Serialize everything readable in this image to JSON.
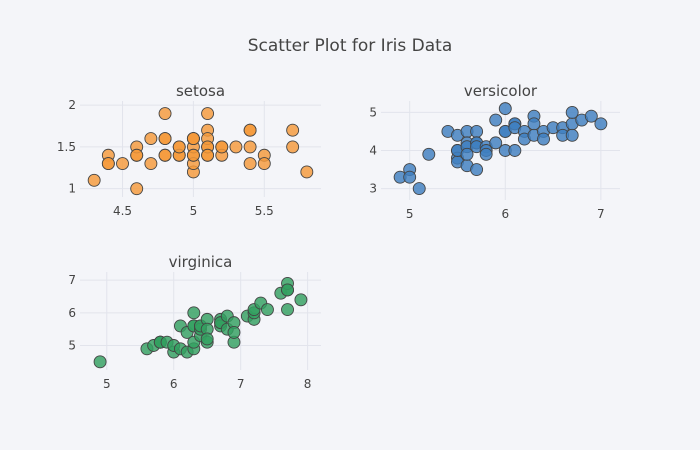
{
  "chart_data": {
    "type": "scatter",
    "title": "Scatter Plot for Iris Data",
    "subplots": [
      {
        "name": "setosa",
        "color": "#f59a3a",
        "xlim": [
          4.2,
          5.9
        ],
        "ylim": [
          0.9,
          2.05
        ],
        "xticks": [
          4.5,
          5,
          5.5
        ],
        "xtick_labels": [
          "4.5",
          "5",
          "5.5"
        ],
        "yticks": [
          1,
          1.5,
          2
        ],
        "ytick_labels": [
          "1",
          "1.5",
          "2"
        ],
        "points": [
          [
            4.3,
            1.1
          ],
          [
            4.4,
            1.4
          ],
          [
            4.4,
            1.3
          ],
          [
            4.4,
            1.3
          ],
          [
            4.5,
            1.3
          ],
          [
            4.6,
            1.0
          ],
          [
            4.6,
            1.4
          ],
          [
            4.6,
            1.5
          ],
          [
            4.6,
            1.4
          ],
          [
            4.7,
            1.3
          ],
          [
            4.7,
            1.6
          ],
          [
            4.8,
            1.9
          ],
          [
            4.8,
            1.6
          ],
          [
            4.8,
            1.4
          ],
          [
            4.8,
            1.6
          ],
          [
            4.8,
            1.4
          ],
          [
            4.9,
            1.4
          ],
          [
            4.9,
            1.5
          ],
          [
            4.9,
            1.4
          ],
          [
            4.9,
            1.5
          ],
          [
            5.0,
            1.4
          ],
          [
            5.0,
            1.5
          ],
          [
            5.0,
            1.6
          ],
          [
            5.0,
            1.2
          ],
          [
            5.0,
            1.3
          ],
          [
            5.0,
            1.4
          ],
          [
            5.0,
            1.6
          ],
          [
            5.0,
            1.6
          ],
          [
            5.1,
            1.4
          ],
          [
            5.1,
            1.5
          ],
          [
            5.1,
            1.7
          ],
          [
            5.1,
            1.9
          ],
          [
            5.1,
            1.6
          ],
          [
            5.1,
            1.5
          ],
          [
            5.1,
            1.4
          ],
          [
            5.2,
            1.5
          ],
          [
            5.2,
            1.4
          ],
          [
            5.2,
            1.5
          ],
          [
            5.3,
            1.5
          ],
          [
            5.4,
            1.7
          ],
          [
            5.4,
            1.5
          ],
          [
            5.4,
            1.7
          ],
          [
            5.4,
            1.3
          ],
          [
            5.5,
            1.4
          ],
          [
            5.5,
            1.3
          ],
          [
            5.7,
            1.5
          ],
          [
            5.7,
            1.7
          ],
          [
            5.8,
            1.2
          ]
        ]
      },
      {
        "name": "versicolor",
        "color": "#3f7fbf",
        "xlim": [
          4.7,
          7.2
        ],
        "ylim": [
          2.7,
          5.3
        ],
        "xticks": [
          5,
          6,
          7
        ],
        "xtick_labels": [
          "5",
          "6",
          "7"
        ],
        "yticks": [
          3,
          4,
          5
        ],
        "ytick_labels": [
          "3",
          "4",
          "5"
        ],
        "points": [
          [
            4.9,
            3.3
          ],
          [
            5.0,
            3.5
          ],
          [
            5.0,
            3.3
          ],
          [
            5.1,
            3.0
          ],
          [
            5.2,
            3.9
          ],
          [
            5.4,
            4.5
          ],
          [
            5.5,
            4.4
          ],
          [
            5.5,
            4.0
          ],
          [
            5.5,
            3.8
          ],
          [
            5.5,
            3.7
          ],
          [
            5.5,
            4.0
          ],
          [
            5.6,
            4.5
          ],
          [
            5.6,
            3.6
          ],
          [
            5.6,
            4.2
          ],
          [
            5.6,
            4.1
          ],
          [
            5.6,
            3.9
          ],
          [
            5.7,
            4.5
          ],
          [
            5.7,
            3.5
          ],
          [
            5.7,
            4.2
          ],
          [
            5.7,
            4.2
          ],
          [
            5.7,
            4.1
          ],
          [
            5.8,
            4.1
          ],
          [
            5.8,
            4.0
          ],
          [
            5.8,
            3.9
          ],
          [
            5.9,
            4.8
          ],
          [
            5.9,
            4.2
          ],
          [
            6.0,
            4.5
          ],
          [
            6.0,
            5.1
          ],
          [
            6.0,
            4.0
          ],
          [
            6.0,
            4.5
          ],
          [
            6.1,
            4.7
          ],
          [
            6.1,
            4.0
          ],
          [
            6.1,
            4.7
          ],
          [
            6.1,
            4.6
          ],
          [
            6.2,
            4.5
          ],
          [
            6.2,
            4.3
          ],
          [
            6.3,
            4.9
          ],
          [
            6.3,
            4.7
          ],
          [
            6.3,
            4.4
          ],
          [
            6.4,
            4.5
          ],
          [
            6.4,
            4.3
          ],
          [
            6.5,
            4.6
          ],
          [
            6.6,
            4.6
          ],
          [
            6.6,
            4.4
          ],
          [
            6.7,
            4.7
          ],
          [
            6.7,
            4.4
          ],
          [
            6.7,
            5.0
          ],
          [
            6.8,
            4.8
          ],
          [
            6.9,
            4.9
          ],
          [
            7.0,
            4.7
          ]
        ]
      },
      {
        "name": "virginica",
        "color": "#33a060",
        "xlim": [
          4.6,
          8.2
        ],
        "ylim": [
          4.25,
          7.25
        ],
        "xticks": [
          5,
          6,
          7,
          8
        ],
        "xtick_labels": [
          "5",
          "6",
          "7",
          "8"
        ],
        "yticks": [
          5,
          6,
          7
        ],
        "ytick_labels": [
          "5",
          "6",
          "7"
        ],
        "points": [
          [
            4.9,
            4.5
          ],
          [
            5.6,
            4.9
          ],
          [
            5.7,
            5.0
          ],
          [
            5.8,
            5.1
          ],
          [
            5.8,
            5.1
          ],
          [
            5.8,
            5.1
          ],
          [
            5.9,
            5.1
          ],
          [
            6.0,
            4.8
          ],
          [
            6.0,
            5.0
          ],
          [
            6.1,
            5.6
          ],
          [
            6.1,
            4.9
          ],
          [
            6.2,
            5.4
          ],
          [
            6.2,
            4.8
          ],
          [
            6.3,
            6.0
          ],
          [
            6.3,
            5.6
          ],
          [
            6.3,
            4.9
          ],
          [
            6.3,
            5.1
          ],
          [
            6.3,
            5.6
          ],
          [
            6.4,
            5.6
          ],
          [
            6.4,
            5.3
          ],
          [
            6.4,
            5.5
          ],
          [
            6.4,
            5.6
          ],
          [
            6.5,
            5.8
          ],
          [
            6.5,
            5.1
          ],
          [
            6.5,
            5.5
          ],
          [
            6.5,
            5.2
          ],
          [
            6.7,
            5.7
          ],
          [
            6.7,
            5.8
          ],
          [
            6.7,
            5.6
          ],
          [
            6.7,
            5.7
          ],
          [
            6.8,
            5.9
          ],
          [
            6.8,
            5.5
          ],
          [
            6.9,
            5.7
          ],
          [
            6.9,
            5.1
          ],
          [
            6.9,
            5.4
          ],
          [
            7.1,
            5.9
          ],
          [
            7.2,
            5.8
          ],
          [
            7.2,
            6.0
          ],
          [
            7.2,
            6.1
          ],
          [
            7.3,
            6.3
          ],
          [
            7.4,
            6.1
          ],
          [
            7.6,
            6.6
          ],
          [
            7.7,
            6.7
          ],
          [
            7.7,
            6.9
          ],
          [
            7.7,
            6.1
          ],
          [
            7.7,
            6.7
          ],
          [
            7.9,
            6.4
          ]
        ]
      }
    ]
  }
}
